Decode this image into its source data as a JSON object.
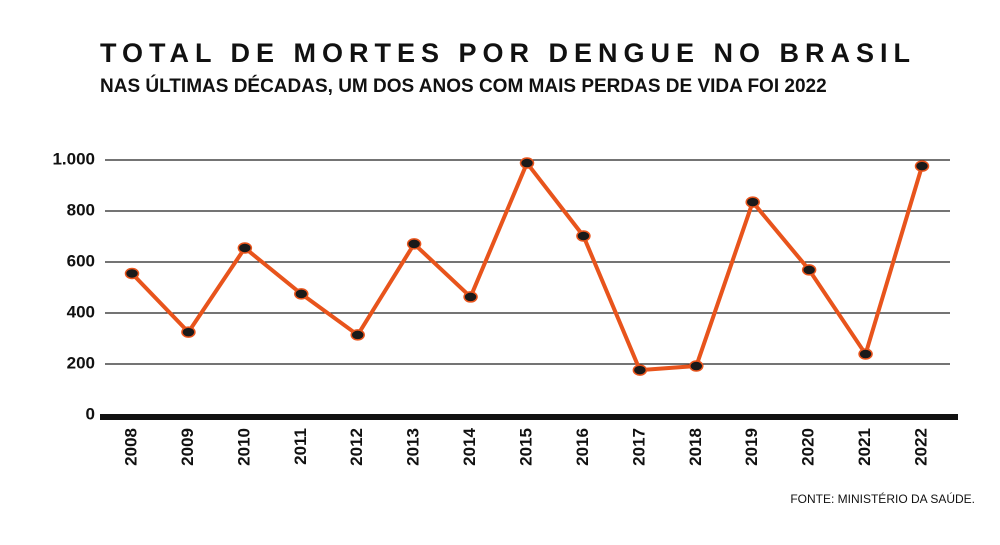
{
  "chart_data": {
    "type": "line",
    "title": "TOTAL DE MORTES POR DENGUE NO BRASIL",
    "subtitle": "NAS ÚLTIMAS DÉCADAS, UM DOS ANOS COM MAIS PERDAS DE VIDA FOI 2022",
    "source": "FONTE: MINISTÉRIO DA SAÚDE.",
    "categories": [
      "2008",
      "2009",
      "2010",
      "2011",
      "2012",
      "2013",
      "2014",
      "2015",
      "2016",
      "2017",
      "2018",
      "2019",
      "2020",
      "2021",
      "2022"
    ],
    "series": [
      {
        "color": "#e8541c",
        "values": [
          555,
          325,
          655,
          475,
          314,
          671,
          463,
          988,
          702,
          176,
          192,
          835,
          569,
          239,
          976
        ]
      }
    ],
    "ylim": [
      0,
      1000
    ],
    "yticks": [
      0,
      200,
      400,
      600,
      800,
      {
        "value": 1000,
        "label": "1.000"
      }
    ],
    "grid": true
  }
}
